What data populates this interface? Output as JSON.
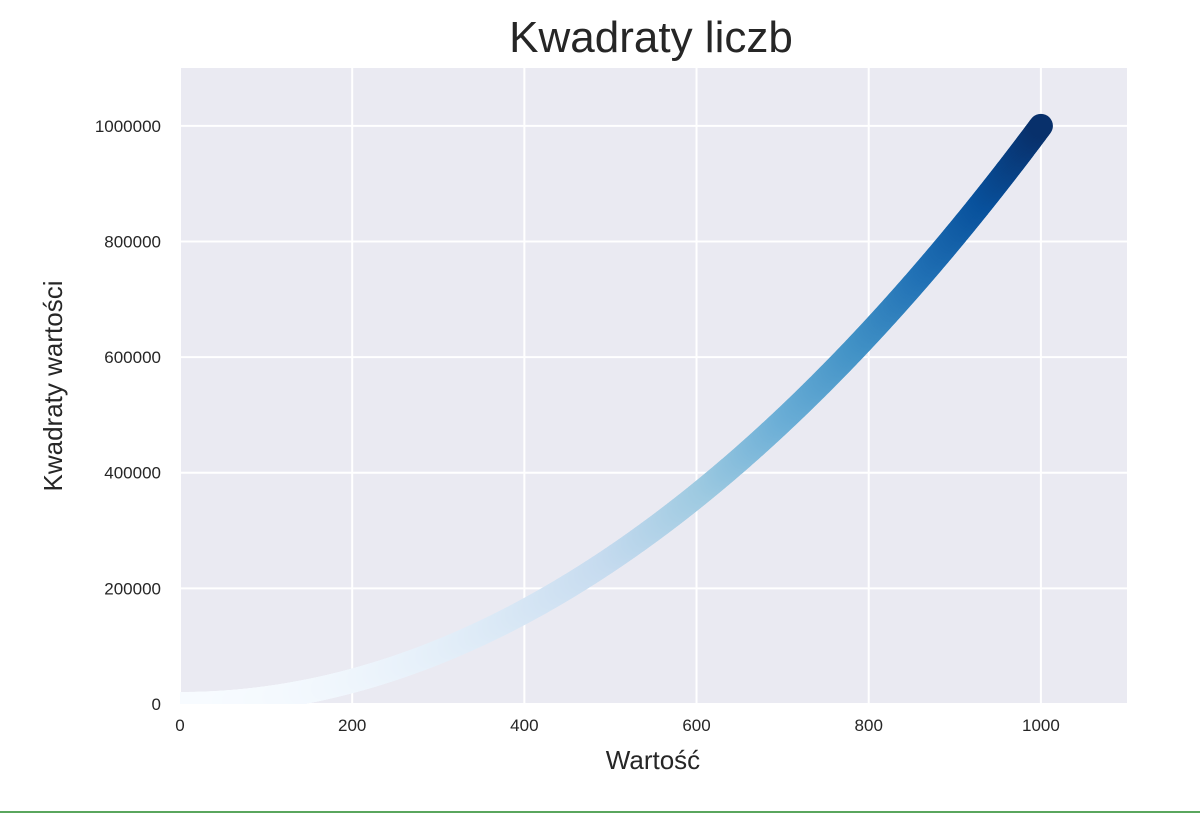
{
  "chart_data": {
    "type": "scatter",
    "title": "Kwadraty liczb",
    "xlabel": "Wartość",
    "ylabel": "Kwadraty wartości",
    "xlim": [
      0,
      1100
    ],
    "ylim": [
      0,
      1100000
    ],
    "xticks": [
      0,
      200,
      400,
      600,
      800,
      1000
    ],
    "yticks": [
      0,
      200000,
      400000,
      600000,
      800000,
      1000000
    ],
    "x_tick_labels": [
      "0",
      "200",
      "400",
      "600",
      "800",
      "1000"
    ],
    "y_tick_labels": [
      "0",
      "200000",
      "400000",
      "600000",
      "800000",
      "1000000"
    ],
    "grid": true,
    "series": [
      {
        "x_range": [
          1,
          1000
        ],
        "y_rule": "x^2",
        "colormap": "Blues",
        "color_by": "y"
      }
    ]
  },
  "style": {
    "background": "#ffffff",
    "plot_background": "#eaeaf2",
    "grid_color": "#ffffff",
    "text_color": "#262626",
    "bottom_rule_color": "#5aa65e"
  }
}
